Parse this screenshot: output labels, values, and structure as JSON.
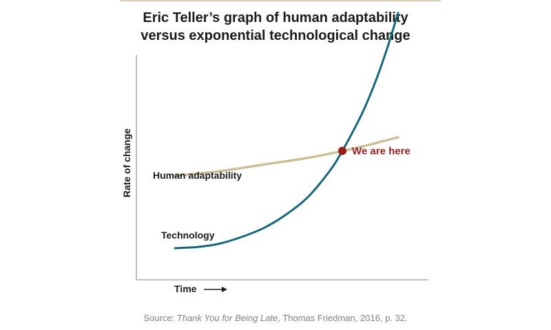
{
  "title_lines": [
    "Eric Teller’s graph of human adaptability",
    "versus exponential technological change"
  ],
  "source": {
    "prefix": "Source: ",
    "book": "Thank You for Being Late",
    "suffix": ", Thomas Friedman, 2016, p. 32."
  },
  "colors": {
    "technology": "#16667a",
    "human_adaptability": "#cbbf97",
    "marker": "#9b1c1c",
    "marker_label": "#9b1c1c",
    "axis": "#a8a8a8"
  },
  "chart_data": {
    "type": "line",
    "title": "Eric Teller’s graph of human adaptability versus exponential technological change",
    "xlabel": "Time",
    "ylabel": "Rate of change",
    "xlim": [
      0,
      100
    ],
    "ylim": [
      0,
      100
    ],
    "grid": false,
    "legend": "none",
    "series": [
      {
        "name": "Technology",
        "color": "#16667a",
        "x": [
          0,
          10,
          20,
          30,
          40,
          50,
          60,
          70,
          75,
          80,
          85,
          90,
          95,
          100
        ],
        "y": [
          14,
          14.5,
          16,
          19,
          23,
          29,
          37,
          49,
          57,
          66,
          76,
          88,
          102,
          118
        ]
      },
      {
        "name": "Human adaptability",
        "color": "#cbbf97",
        "x": [
          0,
          20,
          40,
          60,
          80,
          100
        ],
        "y": [
          46,
          48,
          51,
          54,
          58,
          63
        ]
      }
    ],
    "annotations": [
      {
        "text": "We are here",
        "x": 75,
        "y": 57,
        "color": "#9b1c1c"
      }
    ]
  }
}
